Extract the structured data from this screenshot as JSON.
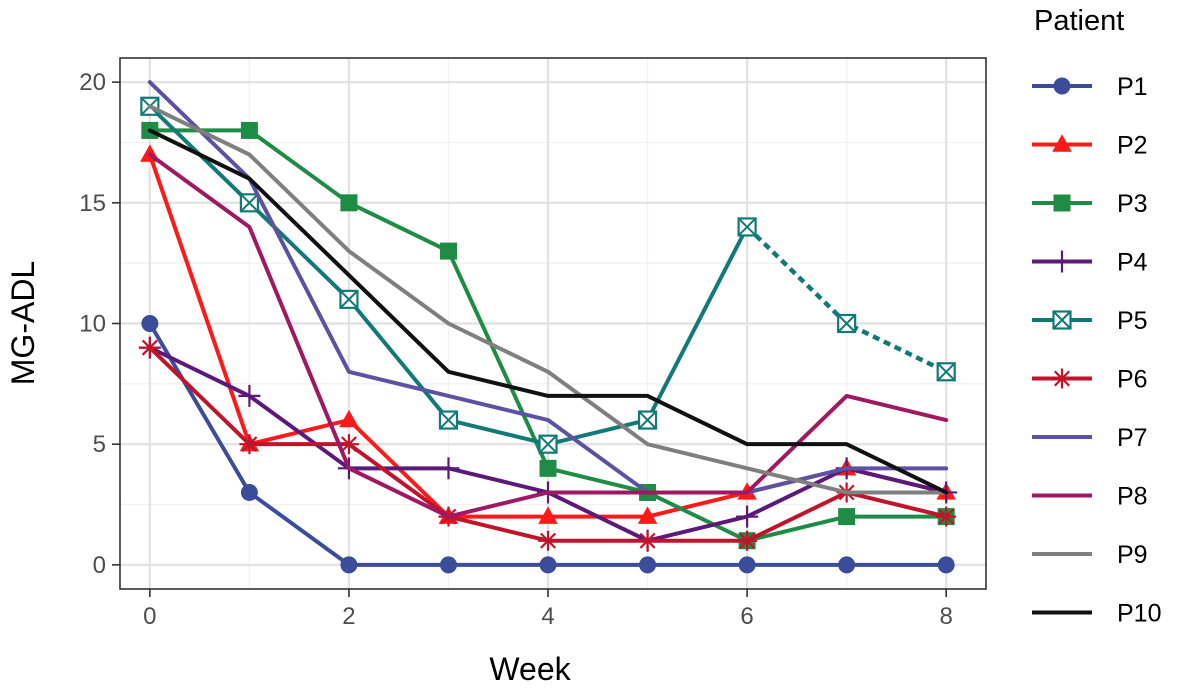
{
  "chart_data": {
    "type": "line",
    "title": "",
    "xlabel": "Week",
    "ylabel": "MG-ADL",
    "xlim": [
      -0.3,
      8.4
    ],
    "ylim": [
      -1,
      21
    ],
    "xticks": [
      0,
      2,
      4,
      6,
      8
    ],
    "yticks": [
      0,
      5,
      10,
      15,
      20
    ],
    "grid": true,
    "legend_title": "Patient",
    "legend_position": "right",
    "series": [
      {
        "name": "P1",
        "color": "#3A4C9A",
        "marker": "circle",
        "x": [
          0,
          1,
          2,
          3,
          4,
          5,
          6,
          7,
          8
        ],
        "y": [
          10,
          3,
          0,
          0,
          0,
          0,
          0,
          0,
          0
        ]
      },
      {
        "name": "P2",
        "color": "#FF1A1A",
        "marker": "triangle",
        "x": [
          0,
          1,
          2,
          3,
          4,
          5,
          6,
          7,
          8
        ],
        "y": [
          17,
          5,
          6,
          2,
          2,
          2,
          3,
          4,
          3
        ]
      },
      {
        "name": "P3",
        "color": "#1E8C45",
        "marker": "square",
        "x": [
          0,
          1,
          2,
          3,
          4,
          5,
          6,
          7,
          8
        ],
        "y": [
          18,
          18,
          15,
          13,
          4,
          3,
          1,
          2,
          2
        ]
      },
      {
        "name": "P4",
        "color": "#5B1A7A",
        "marker": "plus",
        "x": [
          0,
          1,
          2,
          3,
          4,
          5,
          6,
          7,
          8
        ],
        "y": [
          9,
          7,
          4,
          4,
          3,
          1,
          2,
          4,
          3
        ]
      },
      {
        "name": "P5",
        "color": "#117A78",
        "marker": "boxcross",
        "x": [
          0,
          1,
          2,
          3,
          4,
          5,
          6,
          7,
          8
        ],
        "y": [
          19,
          15,
          11,
          6,
          5,
          6,
          14,
          10,
          8
        ],
        "dashed_from_x": 6
      },
      {
        "name": "P6",
        "color": "#C0142A",
        "marker": "asterisk",
        "x": [
          0,
          1,
          2,
          3,
          4,
          5,
          6,
          7,
          8
        ],
        "y": [
          9,
          5,
          5,
          2,
          1,
          1,
          1,
          3,
          2
        ]
      },
      {
        "name": "P7",
        "color": "#5B52A4",
        "marker": "none",
        "x": [
          0,
          1,
          2,
          3,
          4,
          5,
          6,
          7,
          8
        ],
        "y": [
          20,
          16,
          8,
          7,
          6,
          3,
          3,
          4,
          4
        ]
      },
      {
        "name": "P8",
        "color": "#9E1863",
        "marker": "none",
        "x": [
          0,
          1,
          2,
          3,
          4,
          5,
          6,
          7,
          8
        ],
        "y": [
          17,
          14,
          4,
          2,
          3,
          3,
          3,
          7,
          6
        ]
      },
      {
        "name": "P9",
        "color": "#7F7F7F",
        "marker": "none",
        "x": [
          0,
          1,
          2,
          3,
          4,
          5,
          6,
          7,
          8
        ],
        "y": [
          19,
          17,
          13,
          10,
          8,
          5,
          4,
          3,
          3
        ]
      },
      {
        "name": "P10",
        "color": "#111111",
        "marker": "none",
        "x": [
          0,
          1,
          2,
          3,
          4,
          5,
          6,
          7,
          8
        ],
        "y": [
          18,
          16,
          12,
          8,
          7,
          7,
          5,
          5,
          3
        ]
      }
    ]
  }
}
